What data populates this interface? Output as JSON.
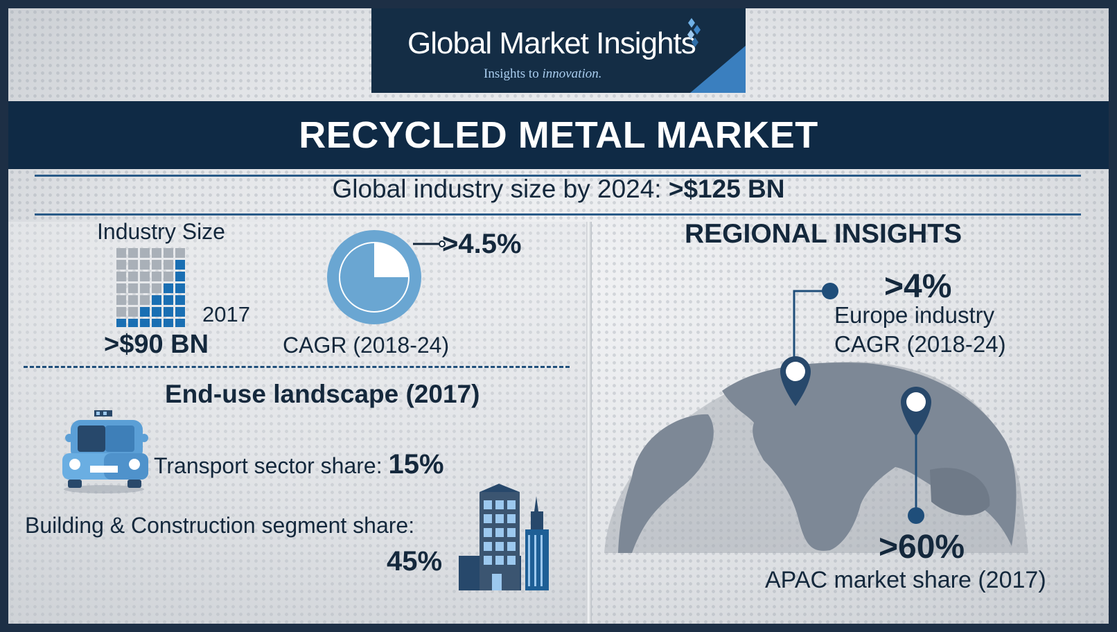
{
  "logo": {
    "name": "Global Market Insights",
    "tagline_prefix": "Insights to",
    "tagline_emphasis": "innovation."
  },
  "title": "RECYCLED METAL MARKET",
  "global_size": {
    "label": "Global industry size by 2024:",
    "value": ">$125 BN"
  },
  "industry_size": {
    "label": "Industry Size",
    "year": "2017",
    "value": ">$90 BN",
    "bar_levels": [
      1,
      1,
      2,
      3,
      4,
      6
    ]
  },
  "cagr": {
    "value": ">4.5%",
    "label": "CAGR (2018-24)",
    "pie_fraction": 0.25
  },
  "end_use": {
    "heading": "End-use landscape (2017)",
    "transport": {
      "label": "Transport sector share:",
      "value": "15%"
    },
    "building": {
      "label": "Building & Construction segment share:",
      "value": "45%"
    }
  },
  "regional": {
    "heading": "REGIONAL INSIGHTS",
    "europe": {
      "value": ">4%",
      "line1": "Europe industry",
      "line2": "CAGR (2018-24)"
    },
    "apac": {
      "value": ">60%",
      "label": "APAC market share (2017)"
    }
  },
  "icons": [
    "car-icon",
    "building-icon",
    "globe-map-icon",
    "location-pin-icon",
    "bar-grid-icon",
    "pie-icon"
  ],
  "colors": {
    "navy": "#0f2a45",
    "accent_blue": "#1a6fb3",
    "pie_blue": "#6aa6d2",
    "text": "#14283c"
  }
}
